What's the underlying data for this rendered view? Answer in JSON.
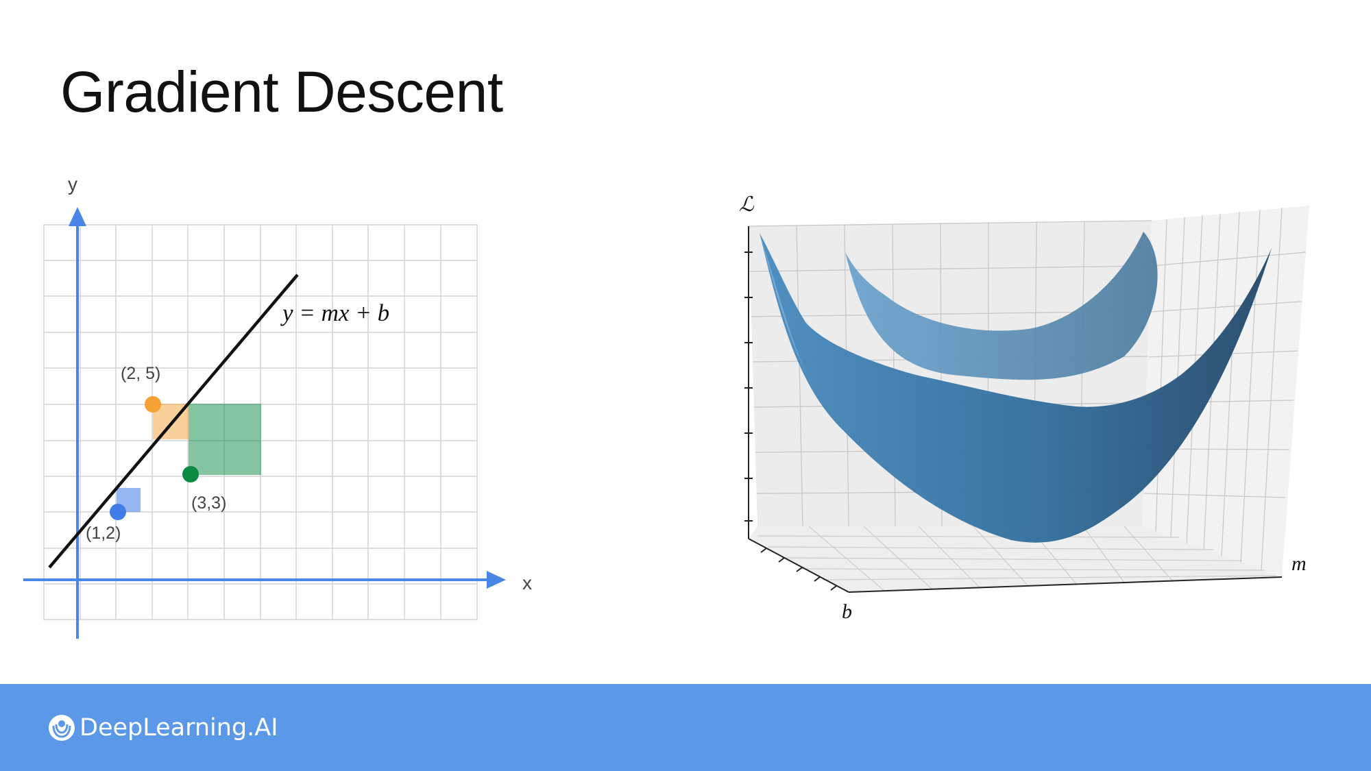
{
  "slide": {
    "title": "Gradient Descent"
  },
  "left_plot": {
    "x_axis_label": "x",
    "y_axis_label": "y",
    "equation": "y = mx + b",
    "points": [
      {
        "label": "(2, 5)",
        "color": "#f4a233"
      },
      {
        "label": "(3,3)",
        "color": "#0b8a43"
      },
      {
        "label": "(1,2)",
        "color": "#3f7ee8"
      }
    ],
    "axis_color": "#4a86e8",
    "line_color": "#111111"
  },
  "right_plot": {
    "z_label": "ℒ",
    "x_label": "m",
    "y_label": "b",
    "surface_color": "#3b78a8"
  },
  "footer": {
    "brand": "DeepLearning.AI",
    "background": "#5b98e8"
  }
}
